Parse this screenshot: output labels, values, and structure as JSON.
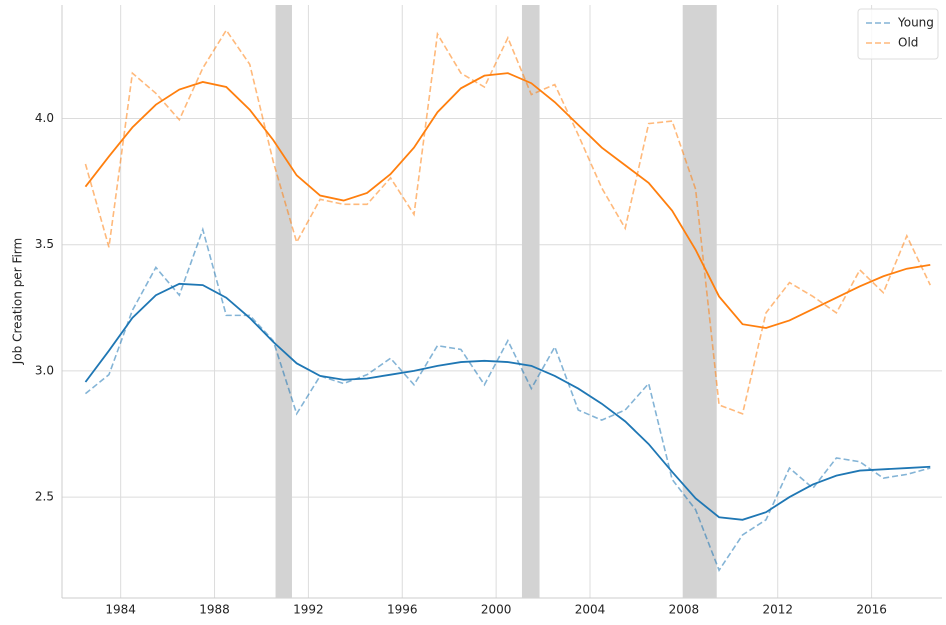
{
  "chart_data": {
    "type": "line",
    "y_label": "Job Creation per Firm",
    "x": [
      1982.5,
      1983.5,
      1984.5,
      1985.5,
      1986.5,
      1987.5,
      1988.5,
      1989.5,
      1990.5,
      1991.5,
      1992.5,
      1993.5,
      1994.5,
      1995.5,
      1996.5,
      1997.5,
      1998.5,
      1999.5,
      2000.5,
      2001.5,
      2002.5,
      2003.5,
      2004.5,
      2005.5,
      2006.5,
      2007.5,
      2008.5,
      2009.5,
      2010.5,
      2011.5,
      2012.5,
      2013.5,
      2014.5,
      2015.5,
      2016.5,
      2017.5,
      2018.5
    ],
    "series": [
      {
        "name": "Young",
        "color": "#1f77b4",
        "dashed": true,
        "opacity": 0.55,
        "values": [
          2.91,
          2.985,
          3.24,
          3.41,
          3.3,
          3.56,
          3.22,
          3.22,
          3.12,
          2.83,
          2.98,
          2.95,
          2.985,
          3.05,
          2.945,
          3.1,
          3.085,
          2.945,
          3.12,
          2.93,
          3.095,
          2.845,
          2.805,
          2.845,
          2.95,
          2.57,
          2.45,
          2.21,
          2.35,
          2.41,
          2.615,
          2.535,
          2.655,
          2.64,
          2.575,
          2.59,
          2.615
        ]
      },
      {
        "name": "Old",
        "color": "#ff7f0e",
        "dashed": true,
        "opacity": 0.55,
        "values": [
          3.82,
          3.49,
          4.18,
          4.1,
          3.995,
          4.2,
          4.35,
          4.215,
          3.83,
          3.51,
          3.68,
          3.66,
          3.66,
          3.765,
          3.62,
          4.335,
          4.18,
          4.125,
          4.32,
          4.095,
          4.135,
          3.935,
          3.725,
          3.565,
          3.98,
          3.99,
          3.72,
          2.865,
          2.83,
          3.23,
          3.35,
          3.295,
          3.23,
          3.4,
          3.31,
          3.535,
          3.34
        ]
      },
      {
        "color": "#1f77b4",
        "dashed": false,
        "opacity": 1,
        "values": [
          2.956,
          3.08,
          3.21,
          3.3,
          3.345,
          3.34,
          3.29,
          3.21,
          3.115,
          3.03,
          2.98,
          2.965,
          2.97,
          2.985,
          3.0,
          3.02,
          3.035,
          3.04,
          3.035,
          3.02,
          2.98,
          2.93,
          2.87,
          2.8,
          2.71,
          2.6,
          2.495,
          2.42,
          2.41,
          2.44,
          2.5,
          2.55,
          2.585,
          2.605,
          2.61,
          2.615,
          2.62
        ]
      },
      {
        "color": "#ff7f0e",
        "dashed": false,
        "opacity": 1,
        "values": [
          3.73,
          3.85,
          3.965,
          4.055,
          4.115,
          4.145,
          4.125,
          4.035,
          3.915,
          3.775,
          3.695,
          3.675,
          3.705,
          3.78,
          3.885,
          4.025,
          4.12,
          4.17,
          4.18,
          4.14,
          4.065,
          3.975,
          3.885,
          3.815,
          3.745,
          3.635,
          3.48,
          3.295,
          3.185,
          3.17,
          3.2,
          3.245,
          3.29,
          3.335,
          3.375,
          3.405,
          3.42
        ]
      }
    ],
    "shaded_regions": [
      [
        1990.6,
        1991.3
      ],
      [
        2001.1,
        2001.85
      ],
      [
        2007.95,
        2009.4
      ]
    ],
    "shade_color": "#d3d3d3",
    "xlim": [
      1981.5,
      2019.0
    ],
    "ylim": [
      2.1,
      4.45
    ],
    "xticks": [
      1984,
      1988,
      1992,
      1996,
      2000,
      2004,
      2008,
      2012,
      2016
    ],
    "yticks": [
      2.5,
      {
        "value": 3,
        "label": "3.0"
      },
      3.5,
      {
        "value": 4,
        "label": "4.0"
      }
    ],
    "grid": true,
    "legend_position": "upper right"
  }
}
